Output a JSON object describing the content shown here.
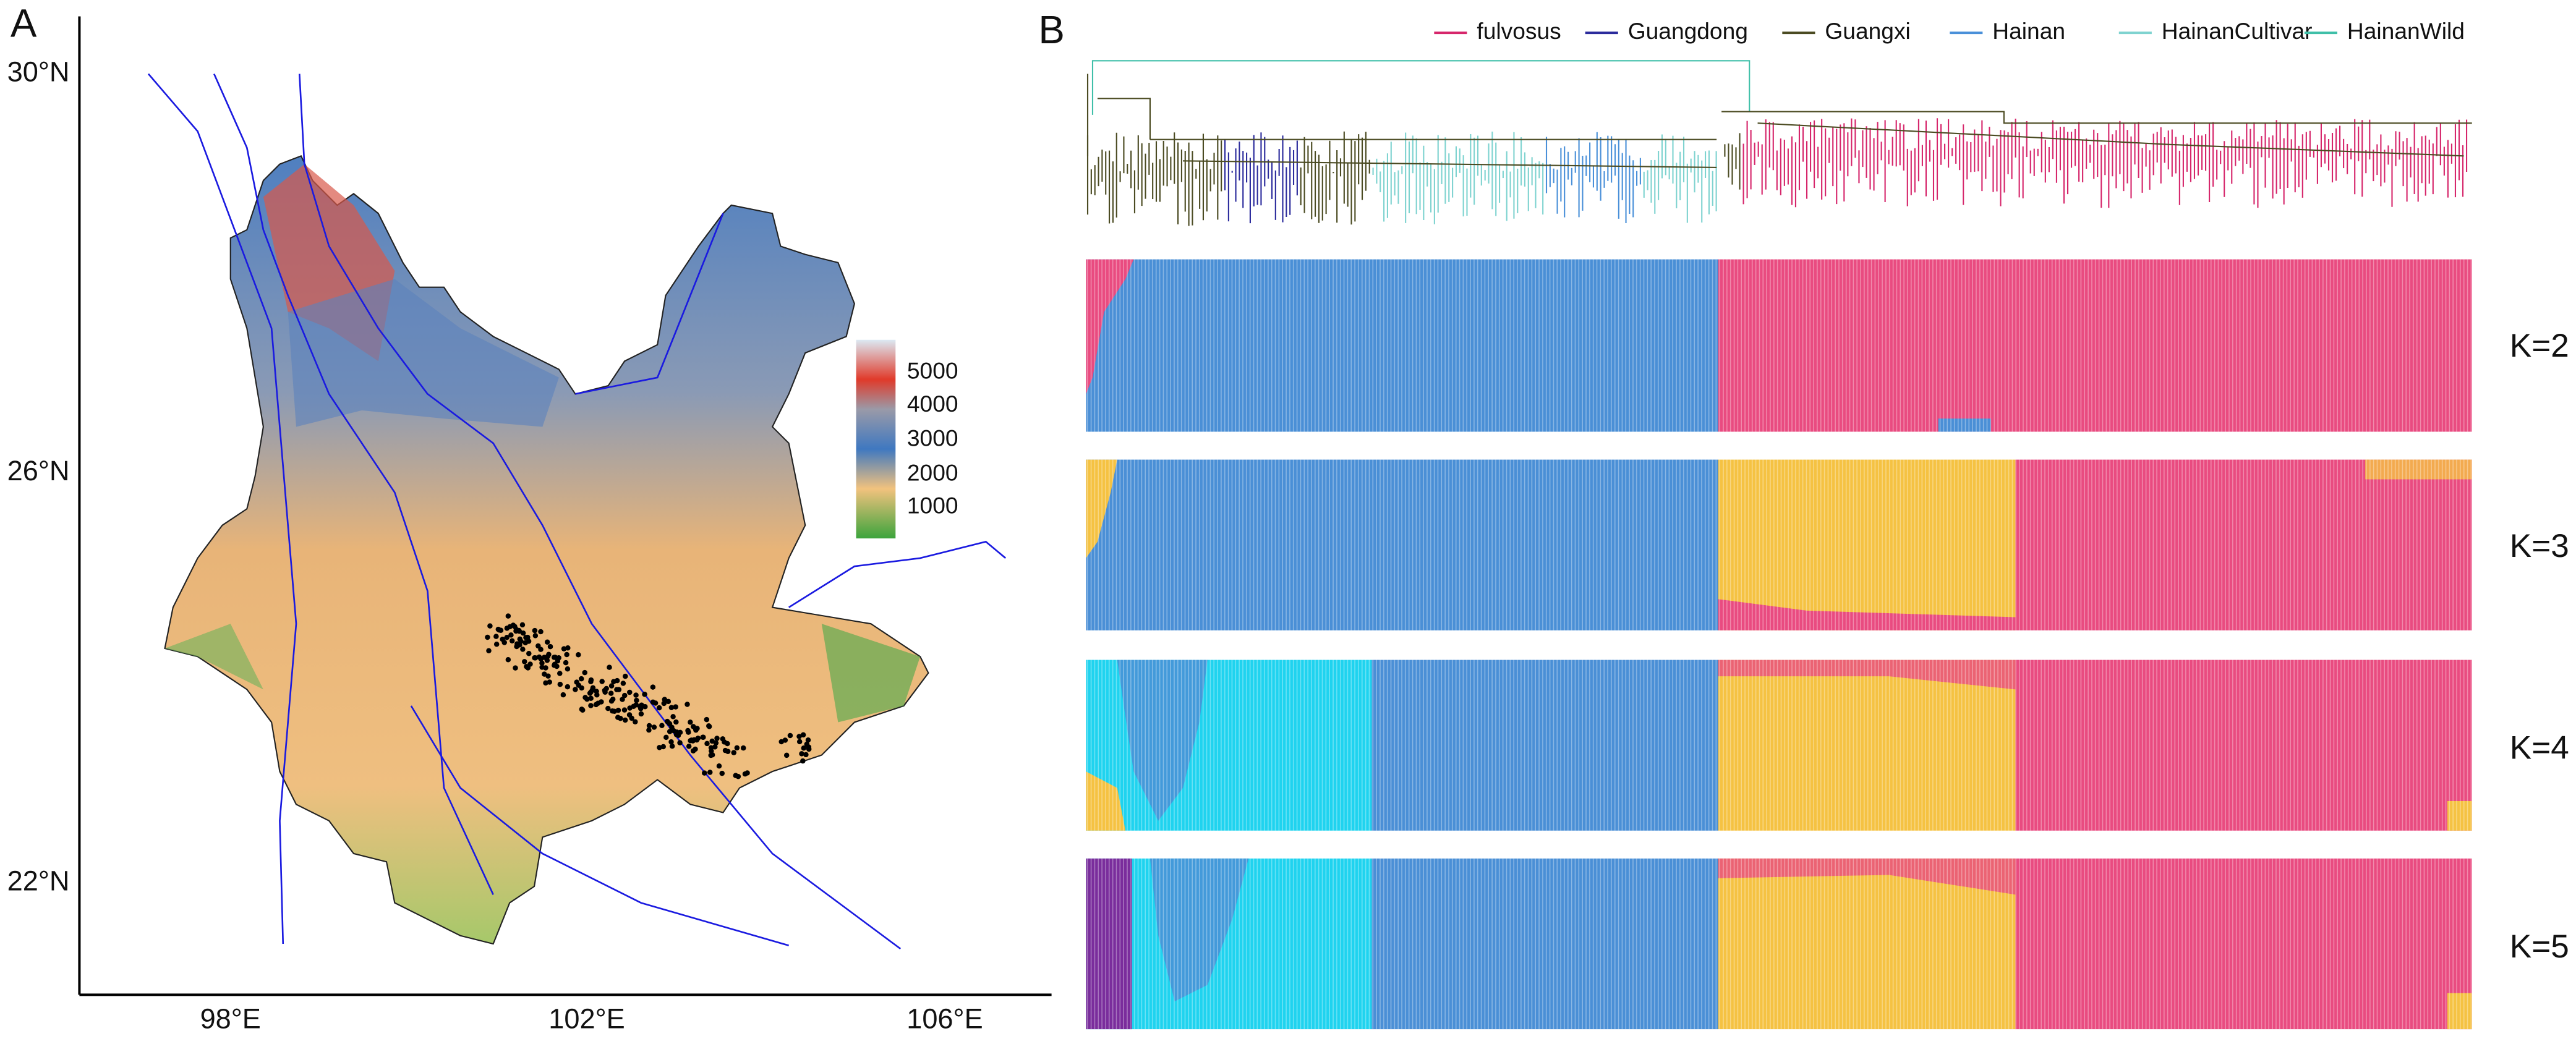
{
  "panels": {
    "A": {
      "label": "A",
      "y_ticks": [
        "30°N",
        "26°N",
        "22°N"
      ],
      "x_ticks": [
        "98°E",
        "102°E",
        "106°E"
      ],
      "colorbar": [
        5000,
        4000,
        3000,
        2000,
        1000
      ]
    },
    "B": {
      "label": "B",
      "legend": [
        {
          "name": "fulvosus",
          "color": "#d6266b"
        },
        {
          "name": "Guangdong",
          "color": "#2b2b9c"
        },
        {
          "name": "Guangxi",
          "color": "#4b4b22"
        },
        {
          "name": "Hainan",
          "color": "#4a90d9"
        },
        {
          "name": "HainanCultivar",
          "color": "#7fd3d0"
        },
        {
          "name": "HainanWild",
          "color": "#3fbfa8"
        }
      ],
      "k_labels": [
        "K=2",
        "K=3",
        "K=4",
        "K=5"
      ]
    }
  }
}
